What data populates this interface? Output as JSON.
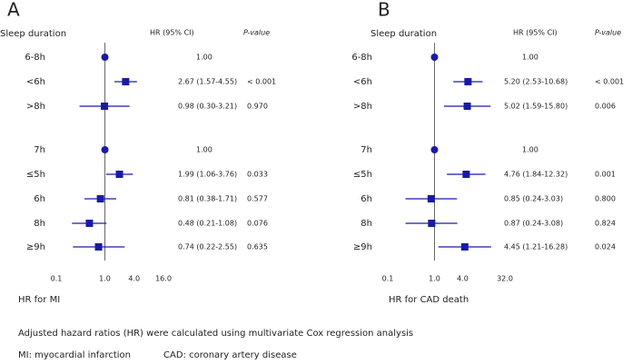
{
  "chart_data": [
    {
      "type": "forest",
      "panel_label": "A",
      "group_header": "Sleep  duration",
      "hr_header": "HR (95% CI)",
      "p_header": "P-value",
      "xlabel": "HR for MI",
      "log_scale": true,
      "color": "#1a1aa6",
      "xlim": [
        0.1,
        16
      ],
      "xticks": [
        0.1,
        {
          "value": 1,
          "label": "1.0"
        },
        {
          "value": 4,
          "label": "4.0"
        },
        {
          "value": 16,
          "label": "16.0"
        }
      ],
      "groups": [
        {
          "categories": [
            "6-8h",
            "<6h",
            ">8h"
          ],
          "values": [
            1,
            2.67,
            0.98
          ],
          "lower": [
            null,
            1.57,
            0.3
          ],
          "upper": [
            null,
            4.55,
            3.21
          ],
          "value_labels": [
            "1.00",
            "2.67 (1.57-4.55)",
            "0.98 (0.30-3.21)"
          ],
          "p_labels": [
            null,
            "< 0.001",
            "0.970"
          ]
        },
        {
          "categories": [
            "7h",
            "≤5h",
            "6h",
            "8h",
            "≥9h"
          ],
          "values": [
            1,
            1.99,
            0.81,
            0.48,
            0.74
          ],
          "lower": [
            null,
            1.06,
            0.38,
            0.21,
            0.22
          ],
          "upper": [
            null,
            3.76,
            1.71,
            1.08,
            2.55
          ],
          "value_labels": [
            "1.00",
            "1.99 (1.06-3.76)",
            "0.81 (0.38-1.71)",
            "0.48 (0.21-1.08)",
            "0.74 (0.22-2.55)"
          ],
          "p_labels": [
            null,
            "0.033",
            "0.577",
            "0.076",
            "0.635"
          ]
        }
      ]
    },
    {
      "type": "forest",
      "panel_label": "B",
      "group_header": "Sleep  duration",
      "hr_header": "HR (95% CI)",
      "p_header": "P-value",
      "xlabel": "HR for CAD death",
      "log_scale": true,
      "color": "#1a1aa6",
      "xlim": [
        0.1,
        32
      ],
      "xticks": [
        0.1,
        {
          "value": 1,
          "label": "1.0"
        },
        {
          "value": 4,
          "label": "4.0"
        },
        {
          "value": 32,
          "label": "32.0"
        }
      ],
      "groups": [
        {
          "categories": [
            "6-8h",
            "<6h",
            ">8h"
          ],
          "values": [
            1,
            5.2,
            5.02
          ],
          "lower": [
            null,
            2.53,
            1.59
          ],
          "upper": [
            null,
            10.68,
            15.8
          ],
          "value_labels": [
            "1.00",
            "5.20 (2.53-10.68)",
            "5.02 (1.59-15.80)"
          ],
          "p_labels": [
            null,
            "< 0.001",
            "0.006"
          ]
        },
        {
          "categories": [
            "7h",
            "≤5h",
            "6h",
            "8h",
            "≥9h"
          ],
          "values": [
            1,
            4.76,
            0.85,
            0.87,
            4.45
          ],
          "lower": [
            null,
            1.84,
            0.24,
            0.24,
            1.21
          ],
          "upper": [
            null,
            12.32,
            3.03,
            3.08,
            16.28
          ],
          "value_labels": [
            "1.00",
            "4.76 (1.84-12.32)",
            "0.85 (0.24-3.03)",
            "0.87 (0.24-3.08)",
            "4.45 (1.21-16.28)"
          ],
          "p_labels": [
            null,
            "0.001",
            "0.800",
            "0.824",
            "0.024"
          ]
        }
      ]
    }
  ],
  "footnotes": [
    "Adjusted hazard ratios (HR) were calculated using multivariate Cox regression analysis",
    "MI: myocardial infarction",
    "CAD: coronary artery disease"
  ]
}
